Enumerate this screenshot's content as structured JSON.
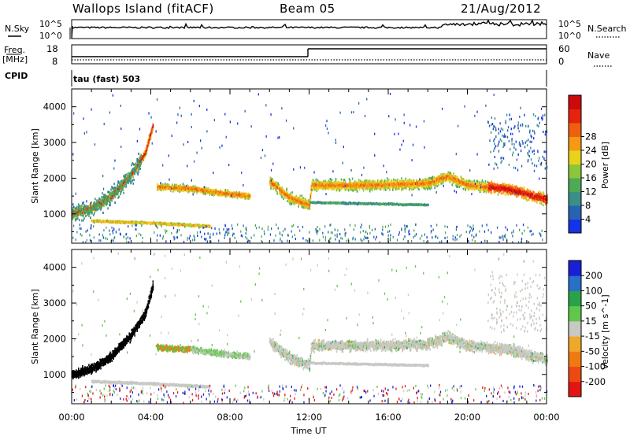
{
  "header": {
    "station": "Wallops Island (fitACF)",
    "beam": "Beam 05",
    "date": "21/Aug/2012"
  },
  "noise_panel": {
    "left_label": "N.Sky",
    "right_label": "N.Search",
    "left_ticks": [
      "10^5",
      "10^0"
    ],
    "right_ticks": [
      "10^5",
      "10^0"
    ]
  },
  "freq_panel": {
    "left_label_1": "Freq.",
    "left_label_2": "[MHz]",
    "left_ticks": [
      "18",
      "8"
    ],
    "right_label": "Nave",
    "right_ticks": [
      "60",
      "0"
    ]
  },
  "cpid_panel": {
    "label": "CPID",
    "mode": "tau (fast) 503"
  },
  "x_axis": {
    "label": "Time UT",
    "ticks": [
      "00:00",
      "04:00",
      "08:00",
      "12:00",
      "16:00",
      "20:00",
      "00:00"
    ]
  },
  "chart_data": [
    {
      "type": "heatmap",
      "panel": "power",
      "ylabel": "Slant Range [km]",
      "xlabel": "Time UT",
      "x_range_hours": [
        0,
        24
      ],
      "y_range_km": [
        180,
        4500
      ],
      "y_ticks": [
        1000,
        2000,
        3000,
        4000
      ],
      "colorbar": {
        "label": "Power [dB]",
        "range": [
          0,
          32
        ],
        "ticks": [
          "4",
          "8",
          "12",
          "16",
          "20",
          "24",
          "28"
        ],
        "colors": [
          "#1433e6",
          "#2a62b2",
          "#3b8f86",
          "#4faa55",
          "#8cc63a",
          "#e9d21c",
          "#f59a12",
          "#ef5f10",
          "#e5230f",
          "#cc0a0a"
        ]
      },
      "features": [
        {
          "name": "main band",
          "points_hours_km": [
            [
              0,
              1000
            ],
            [
              1,
              1150
            ],
            [
              2,
              1500
            ],
            [
              3,
              2100
            ],
            [
              3.7,
              2700
            ],
            [
              4.1,
              3500
            ]
          ]
        },
        {
          "name": "arc",
          "points_hours_km": [
            [
              4.3,
              1750
            ],
            [
              6,
              1700
            ],
            [
              8,
              1550
            ],
            [
              9,
              1500
            ]
          ]
        },
        {
          "name": "lower streak",
          "points_hours_km": [
            [
              1,
              800
            ],
            [
              4,
              740
            ],
            [
              7,
              650
            ]
          ]
        },
        {
          "name": "post-noon",
          "points_hours_km": [
            [
              10,
              1900
            ],
            [
              11,
              1450
            ],
            [
              12,
              1250
            ],
            [
              12.1,
              1800
            ],
            [
              15,
              1800
            ],
            [
              18,
              1850
            ],
            [
              19,
              2050
            ],
            [
              20,
              1800
            ],
            [
              22,
              1700
            ],
            [
              24,
              1400
            ]
          ]
        }
      ]
    },
    {
      "type": "heatmap",
      "panel": "velocity",
      "ylabel": "Slant Range [km]",
      "xlabel": "Time UT",
      "x_range_hours": [
        0,
        24
      ],
      "y_range_km": [
        180,
        4500
      ],
      "y_ticks": [
        1000,
        2000,
        3000,
        4000
      ],
      "colorbar": {
        "label": "Velocity [m s^-1]",
        "ticks": [
          "200",
          "100",
          "50",
          "15",
          "-15",
          "-50",
          "-100",
          "-200"
        ],
        "colors": [
          "#1a1fd6",
          "#2870c8",
          "#2ba24a",
          "#5fc84a",
          "#c8c8c4",
          "#f0a82a",
          "#ef7a12",
          "#ec4a12",
          "#e21414"
        ]
      }
    }
  ]
}
